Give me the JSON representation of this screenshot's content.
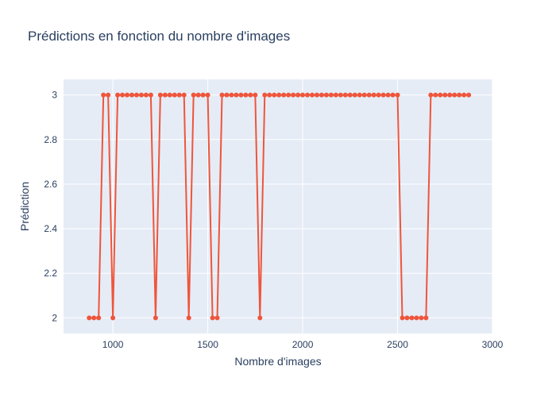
{
  "chart_data": {
    "type": "line",
    "title": "Prédictions en fonction du nombre d'images",
    "xlabel": "Nombre d'images",
    "ylabel": "Prédiction",
    "xlim": [
      740,
      3000
    ],
    "ylim": [
      1.93,
      3.07
    ],
    "x_ticks": [
      1000,
      1500,
      2000,
      2500,
      3000
    ],
    "y_ticks": [
      2,
      2.2,
      2.4,
      2.6,
      2.8,
      3
    ],
    "y_tick_labels": [
      "2",
      "2.2",
      "2.4",
      "2.6",
      "2.8",
      "3"
    ],
    "grid": true,
    "mode": "lines+markers",
    "series": [
      {
        "color": "#ef553b",
        "x": [
          875,
          900,
          925,
          950,
          975,
          1000,
          1025,
          1050,
          1075,
          1100,
          1125,
          1150,
          1175,
          1200,
          1225,
          1250,
          1275,
          1300,
          1325,
          1350,
          1375,
          1400,
          1425,
          1450,
          1475,
          1500,
          1525,
          1550,
          1575,
          1600,
          1625,
          1650,
          1675,
          1700,
          1725,
          1750,
          1775,
          1800,
          1825,
          1850,
          1875,
          1900,
          1925,
          1950,
          1975,
          2000,
          2025,
          2050,
          2075,
          2100,
          2125,
          2150,
          2175,
          2200,
          2225,
          2250,
          2275,
          2300,
          2325,
          2350,
          2375,
          2400,
          2425,
          2450,
          2475,
          2500,
          2525,
          2550,
          2575,
          2600,
          2625,
          2650,
          2675,
          2700,
          2725,
          2750,
          2775,
          2800,
          2825,
          2850,
          2875
        ],
        "y": [
          2,
          2,
          2,
          3,
          3,
          2,
          3,
          3,
          3,
          3,
          3,
          3,
          3,
          3,
          2,
          3,
          3,
          3,
          3,
          3,
          3,
          2,
          3,
          3,
          3,
          3,
          2,
          2,
          3,
          3,
          3,
          3,
          3,
          3,
          3,
          3,
          2,
          3,
          3,
          3,
          3,
          3,
          3,
          3,
          3,
          3,
          3,
          3,
          3,
          3,
          3,
          3,
          3,
          3,
          3,
          3,
          3,
          3,
          3,
          3,
          3,
          3,
          3,
          3,
          3,
          3,
          2,
          2,
          2,
          2,
          2,
          2,
          3,
          3,
          3,
          3,
          3,
          3,
          3,
          3,
          3
        ]
      }
    ]
  }
}
